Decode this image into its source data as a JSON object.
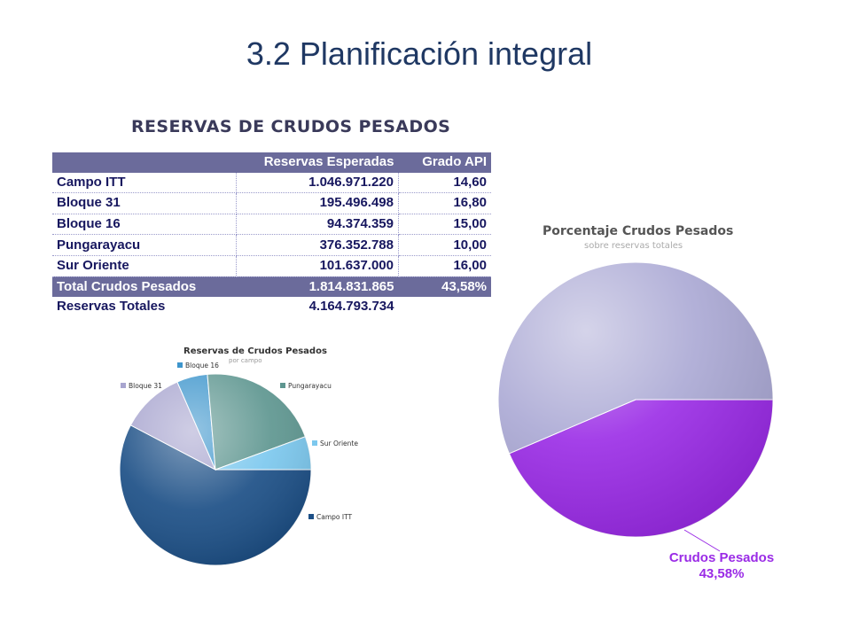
{
  "slide": {
    "title": "3.2 Planificación integral",
    "section_title": "RESERVAS DE CRUDOS PESADOS"
  },
  "table": {
    "headers": [
      "",
      "Reservas Esperadas",
      "Grado API"
    ],
    "rows": [
      {
        "campo": "Campo ITT",
        "reservas": "1.046.971.220",
        "api": "14,60"
      },
      {
        "campo": "Bloque 31",
        "reservas": "195.496.498",
        "api": "16,80"
      },
      {
        "campo": "Bloque 16",
        "reservas": "94.374.359",
        "api": "15,00"
      },
      {
        "campo": "Pungarayacu",
        "reservas": "376.352.788",
        "api": "10,00"
      },
      {
        "campo": "Sur Oriente",
        "reservas": "101.637.000",
        "api": "16,00"
      }
    ],
    "total": {
      "label": "Total Crudos Pesados",
      "reservas": "1.814.831.865",
      "api": "43,58%"
    },
    "grand_total": {
      "label": "Reservas Totales",
      "reservas": "4.164.793.734"
    }
  },
  "chart_data": [
    {
      "type": "pie",
      "title": "Reservas de Crudos Pesados",
      "subtitle": "por campo",
      "slices": [
        {
          "label": "Campo ITT",
          "value": 1046971220,
          "color": "#1c4f86"
        },
        {
          "label": "Bloque 31",
          "value": 195496498,
          "color": "#a8a5cf"
        },
        {
          "label": "Bloque 16",
          "value": 94374359,
          "color": "#3d95cc"
        },
        {
          "label": "Pungarayacu",
          "value": 376352788,
          "color": "#5e9690"
        },
        {
          "label": "Sur Oriente",
          "value": 101637000,
          "color": "#7cc8ee"
        }
      ],
      "legend_placement": "around-pie"
    },
    {
      "type": "pie",
      "title": "Porcentaje Crudos Pesados",
      "subtitle": "sobre reservas totales",
      "slices": [
        {
          "label": "Crudos Pesados",
          "value": 43.58,
          "color": "#9a2be6"
        },
        {
          "label": "",
          "value": 56.42,
          "color": "#aaa8d4"
        }
      ],
      "annotation": {
        "label": "Crudos Pesados",
        "value": "43,58%"
      }
    }
  ]
}
